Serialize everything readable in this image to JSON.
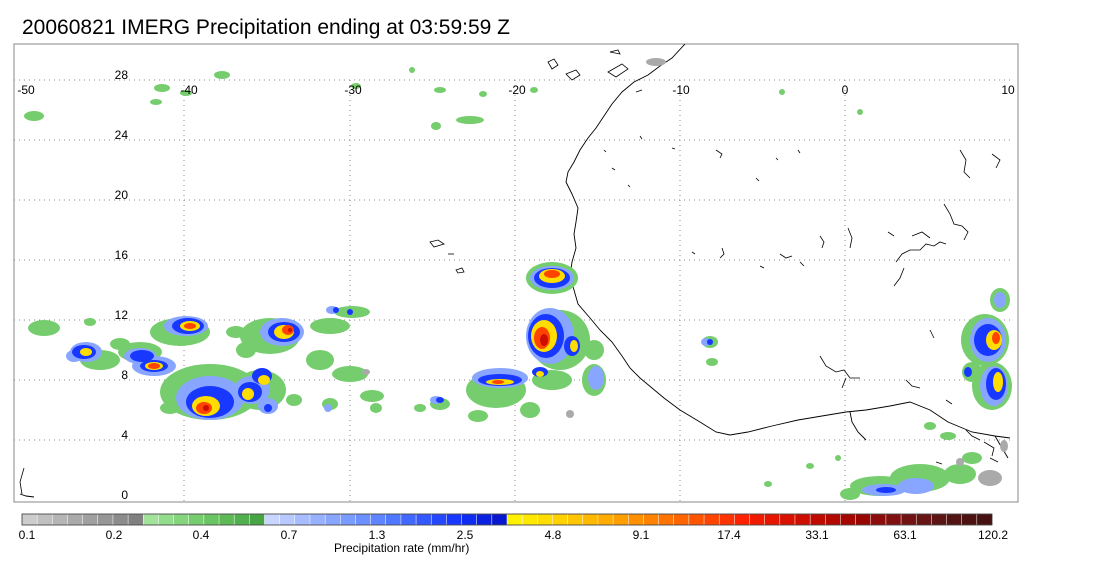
{
  "title": "20060821 IMERG Precipitation ending at 03:59:59 Z",
  "map": {
    "lon_labels": [
      "-50",
      "-40",
      "-30",
      "-20",
      "-10",
      "0",
      "10"
    ],
    "lat_labels": [
      "28",
      "24",
      "20",
      "16",
      "12",
      "8",
      "4",
      "0"
    ]
  },
  "colorbar": {
    "label": "Precipitation rate (mm/hr)",
    "tick_labels": [
      "0.1",
      "0.2",
      "0.4",
      "0.7",
      "1.3",
      "2.5",
      "4.8",
      "9.1",
      "17.4",
      "33.1",
      "63.1",
      "120.2"
    ],
    "colors": [
      "#cccccc",
      "#c0c0c0",
      "#b5b5b5",
      "#aaaaaa",
      "#a0a0a0",
      "#969696",
      "#8c8c8c",
      "#808080",
      "#a3e29b",
      "#93dc8b",
      "#84d57c",
      "#76cd6e",
      "#69c462",
      "#5dba57",
      "#52af4e",
      "#49a446",
      "#c9d6ff",
      "#b7c9ff",
      "#a7bdff",
      "#97b1ff",
      "#88a6ff",
      "#7a9bff",
      "#6c90ff",
      "#5e85ff",
      "#4f78ff",
      "#4168ff",
      "#3358ff",
      "#2548ff",
      "#1838ff",
      "#0f2cf2",
      "#0a22e0",
      "#0718cf",
      "#fff200",
      "#ffe800",
      "#ffdd00",
      "#ffd100",
      "#ffc500",
      "#ffb800",
      "#ffab00",
      "#ff9e00",
      "#ff9000",
      "#ff8200",
      "#ff7300",
      "#ff6400",
      "#ff5400",
      "#ff4400",
      "#ff3300",
      "#ff2200",
      "#f21a00",
      "#e61500",
      "#d91100",
      "#cc0d00",
      "#bf0a00",
      "#b30800",
      "#a60600",
      "#990500",
      "#8c0c0c",
      "#801010",
      "#731212",
      "#661414",
      "#5c1414",
      "#541313",
      "#4c1212",
      "#451111"
    ]
  }
}
